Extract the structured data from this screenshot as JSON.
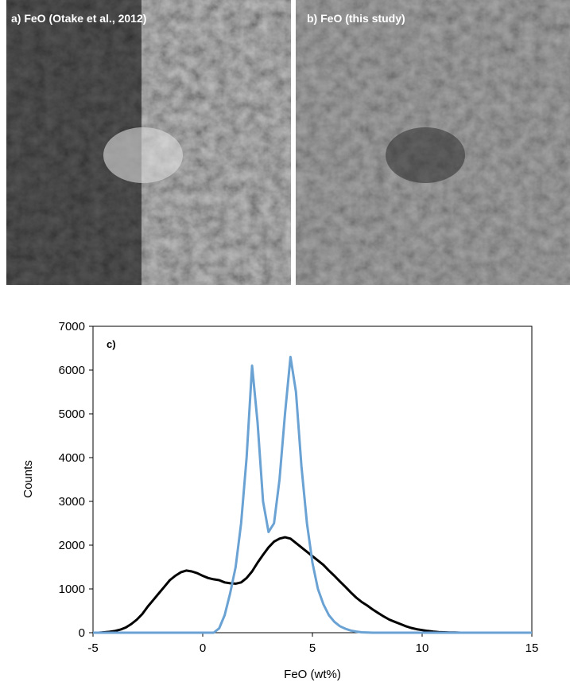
{
  "panels": [
    {
      "label": "a) FeO (Otake et al., 2012)"
    },
    {
      "label": "b) FeO (this study)"
    }
  ],
  "chart_data": {
    "type": "line",
    "panel_label": "c)",
    "x_label": "FeO (wt%)",
    "y_label": "Counts",
    "xlim": [
      -5,
      15
    ],
    "xticks": [
      -5,
      0,
      5,
      10,
      15
    ],
    "ylim": [
      0,
      7000
    ],
    "yticks": [
      0,
      1000,
      2000,
      3000,
      4000,
      5000,
      6000,
      7000
    ],
    "x": [
      -5,
      -4.75,
      -4.5,
      -4.25,
      -4,
      -3.75,
      -3.5,
      -3.25,
      -3,
      -2.75,
      -2.5,
      -2.25,
      -2,
      -1.75,
      -1.5,
      -1.25,
      -1,
      -0.75,
      -0.5,
      -0.25,
      0,
      0.25,
      0.5,
      0.75,
      1,
      1.25,
      1.5,
      1.75,
      2,
      2.25,
      2.5,
      2.75,
      3,
      3.25,
      3.5,
      3.75,
      4,
      4.25,
      4.5,
      4.75,
      5,
      5.25,
      5.5,
      5.75,
      6,
      6.25,
      6.5,
      6.75,
      7,
      7.25,
      7.5,
      7.75,
      8,
      8.25,
      8.5,
      8.75,
      9,
      9.25,
      9.5,
      9.75,
      10,
      10.25,
      10.5,
      10.75,
      11,
      11.25,
      11.5,
      11.75,
      12,
      12.25,
      12.5,
      12.75,
      13,
      13.25,
      13.5,
      13.75,
      14,
      14.25,
      14.5,
      14.75,
      15
    ],
    "series": [
      {
        "color": "#000000",
        "values": [
          0,
          0,
          10,
          20,
          40,
          70,
          120,
          200,
          300,
          430,
          600,
          750,
          900,
          1050,
          1200,
          1300,
          1380,
          1420,
          1400,
          1360,
          1300,
          1250,
          1220,
          1200,
          1150,
          1130,
          1120,
          1150,
          1250,
          1400,
          1600,
          1780,
          1950,
          2080,
          2150,
          2180,
          2150,
          2050,
          1950,
          1850,
          1750,
          1650,
          1550,
          1420,
          1300,
          1170,
          1050,
          920,
          800,
          700,
          620,
          530,
          450,
          370,
          300,
          250,
          200,
          150,
          110,
          80,
          60,
          40,
          25,
          15,
          10,
          5,
          3,
          0,
          0,
          0,
          0,
          0,
          0,
          0,
          0,
          0,
          0,
          0,
          0,
          0,
          0
        ]
      },
      {
        "color": "#6aa2d4",
        "values": [
          0,
          0,
          0,
          0,
          0,
          0,
          0,
          0,
          0,
          0,
          0,
          0,
          0,
          0,
          0,
          0,
          0,
          0,
          0,
          0,
          0,
          0,
          0,
          100,
          400,
          900,
          1500,
          2500,
          4000,
          6100,
          4800,
          3000,
          2300,
          2500,
          3500,
          5000,
          6300,
          5500,
          3800,
          2500,
          1600,
          1000,
          650,
          400,
          250,
          150,
          90,
          50,
          25,
          10,
          3,
          0,
          0,
          0,
          0,
          0,
          0,
          0,
          0,
          0,
          0,
          0,
          0,
          0,
          0,
          0,
          0,
          0,
          0,
          0,
          0,
          0,
          0,
          0,
          0,
          0,
          0,
          0,
          0,
          0,
          0
        ]
      }
    ]
  }
}
